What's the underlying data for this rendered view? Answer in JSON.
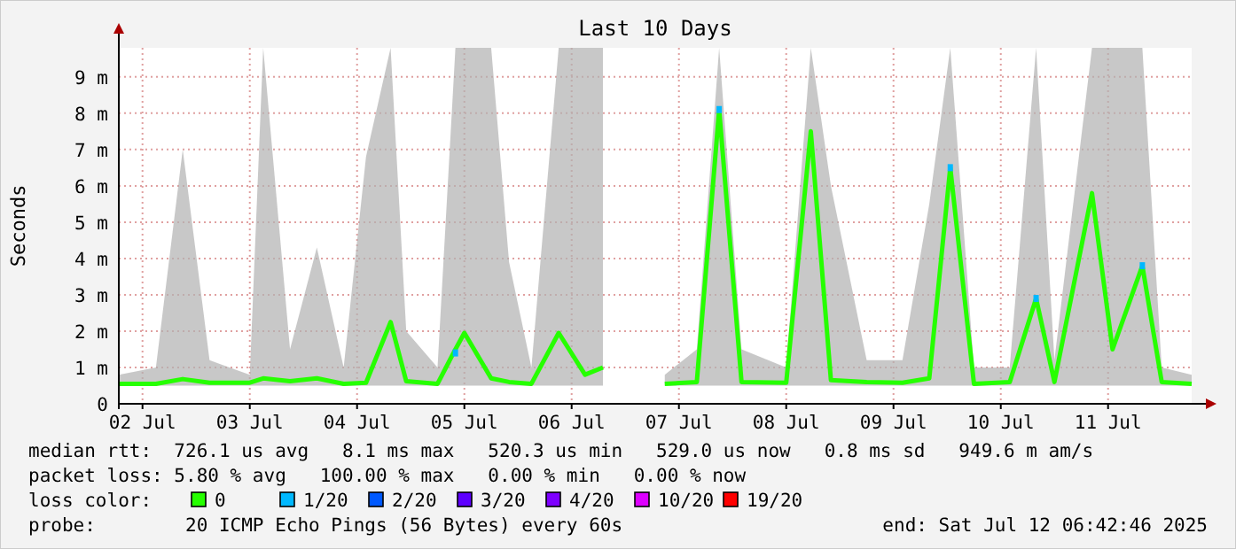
{
  "chart_data": {
    "type": "line",
    "title": "Last 10 Days",
    "ylabel": "Seconds",
    "x": [
      "2025-07-02T06:42",
      "2025-07-02T15:00",
      "2025-07-02T21:00",
      "2025-07-03T03:00",
      "2025-07-03T12:00",
      "2025-07-03T15:00",
      "2025-07-03T21:00",
      "2025-07-04T03:00",
      "2025-07-04T09:00",
      "2025-07-04T14:00",
      "2025-07-04T19:30",
      "2025-07-04T23:00",
      "2025-07-05T06:00",
      "2025-07-05T10:00",
      "2025-07-05T12:00",
      "2025-07-05T18:00",
      "2025-07-05T22:00",
      "2025-07-06T03:00",
      "2025-07-06T09:06",
      "2025-07-06T15:00",
      "2025-07-06T19:00",
      "2025-07-06T20:00",
      "2025-07-07T08:50",
      "2025-07-07T16:00",
      "2025-07-07T21:00",
      "2025-07-08T02:00",
      "2025-07-08T12:00",
      "2025-07-08T17:30",
      "2025-07-08T22:00",
      "2025-07-09T06:00",
      "2025-07-09T14:00",
      "2025-07-09T20:00",
      "2025-07-10T00:42",
      "2025-07-10T06:00",
      "2025-07-10T14:00",
      "2025-07-10T19:54",
      "2025-07-11T00:00",
      "2025-07-11T08:24",
      "2025-07-11T13:00",
      "2025-07-11T19:40",
      "2025-07-12T00:00",
      "2025-07-12T06:42"
    ],
    "series": [
      {
        "name": "0",
        "color": "#26ff00",
        "values": [
          0.55,
          0.55,
          0.68,
          0.58,
          0.58,
          0.7,
          0.62,
          0.7,
          0.55,
          0.58,
          2.25,
          0.62,
          0.55,
          1.5,
          1.95,
          0.7,
          0.6,
          0.55,
          1.95,
          0.8,
          1.0,
          null,
          0.55,
          0.6,
          8.1,
          0.6,
          0.58,
          7.5,
          0.65,
          0.6,
          0.58,
          0.7,
          6.5,
          0.55,
          0.6,
          2.9,
          0.6,
          5.8,
          1.5,
          3.8,
          0.6,
          0.55
        ],
        "lower": [
          0.5,
          0.5,
          0.5,
          0.5,
          0.5,
          0.5,
          0.5,
          0.5,
          0.5,
          0.5,
          0.5,
          0.5,
          0.5,
          0.5,
          0.5,
          0.5,
          0.5,
          0.5,
          0.5,
          0.5,
          0.5,
          null,
          0.5,
          0.5,
          0.5,
          0.5,
          0.5,
          0.5,
          0.5,
          0.5,
          0.5,
          0.5,
          0.5,
          0.5,
          0.5,
          0.5,
          0.5,
          0.5,
          0.5,
          0.5,
          0.5,
          0.5
        ],
        "upper": [
          0.8,
          1.0,
          7.0,
          1.2,
          0.8,
          9.8,
          1.5,
          4.3,
          1.0,
          6.8,
          9.8,
          2.0,
          1.0,
          9.8,
          9.8,
          9.8,
          3.9,
          1.0,
          9.8,
          9.8,
          9.8,
          null,
          0.8,
          1.5,
          9.8,
          1.5,
          1.0,
          9.8,
          6.0,
          1.2,
          1.2,
          5.5,
          9.8,
          1.0,
          1.0,
          9.8,
          1.2,
          9.8,
          9.8,
          9.8,
          1.0,
          0.8
        ]
      },
      {
        "name": "1/20",
        "type": "scatter",
        "marker": "square",
        "color": "#00b8ff",
        "x": [
          "2025-07-05T10:00",
          "2025-07-07T21:00",
          "2025-07-10T00:42",
          "2025-07-10T19:54",
          "2025-07-11T19:40"
        ],
        "values": [
          1.4,
          8.1,
          6.5,
          2.9,
          3.8
        ]
      },
      {
        "name": "2/20",
        "type": "scatter",
        "marker": "square",
        "color": "#0059ff",
        "values": [
          null,
          null,
          null,
          null,
          null,
          null,
          null,
          null,
          null,
          null,
          null,
          null,
          null,
          null,
          null,
          null,
          null,
          null,
          null,
          null,
          null,
          null,
          null,
          null,
          null,
          null,
          null,
          null,
          null,
          null,
          null,
          null,
          null,
          null,
          null,
          null,
          null,
          null,
          null,
          null,
          null,
          null
        ]
      },
      {
        "name": "3/20",
        "type": "scatter",
        "marker": "square",
        "color": "#5e00ff",
        "values": [
          null,
          null,
          null,
          null,
          null,
          null,
          null,
          null,
          null,
          null,
          null,
          null,
          null,
          null,
          null,
          null,
          null,
          null,
          null,
          null,
          null,
          null,
          null,
          null,
          null,
          null,
          null,
          null,
          null,
          null,
          null,
          null,
          null,
          null,
          null,
          null,
          null,
          null,
          null,
          null,
          null,
          null
        ]
      },
      {
        "name": "4/20",
        "type": "scatter",
        "marker": "square",
        "color": "#7e00ff",
        "values": [
          null,
          null,
          null,
          null,
          null,
          null,
          null,
          null,
          null,
          null,
          null,
          null,
          null,
          null,
          null,
          null,
          null,
          null,
          null,
          null,
          null,
          null,
          null,
          null,
          null,
          null,
          null,
          null,
          null,
          null,
          null,
          null,
          null,
          null,
          null,
          null,
          null,
          null,
          null,
          null,
          null,
          null
        ]
      },
      {
        "name": "10/20",
        "type": "scatter",
        "marker": "square",
        "color": "#dd00ff",
        "values": [
          null,
          null,
          null,
          null,
          null,
          null,
          null,
          null,
          null,
          null,
          null,
          null,
          null,
          null,
          null,
          null,
          null,
          null,
          null,
          null,
          null,
          null,
          null,
          null,
          null,
          null,
          null,
          null,
          null,
          null,
          null,
          null,
          null,
          null,
          null,
          null,
          null,
          null,
          null,
          null,
          null,
          null
        ]
      },
      {
        "name": "19/20",
        "type": "scatter",
        "marker": "square",
        "color": "#ff0000",
        "values": [
          null,
          null,
          null,
          null,
          null,
          null,
          null,
          null,
          null,
          null,
          null,
          null,
          null,
          null,
          null,
          null,
          null,
          null,
          null,
          null,
          null,
          null,
          null,
          null,
          null,
          null,
          null,
          null,
          null,
          null,
          null,
          null,
          null,
          null,
          null,
          null,
          null,
          null,
          null,
          null,
          null,
          null
        ]
      }
    ],
    "xlim": [
      "2025-07-02T06:42",
      "2025-07-12T06:42"
    ],
    "xticks": [
      {
        "value": "2025-07-02T12:00",
        "label": "02 Jul"
      },
      {
        "value": "2025-07-03T12:00",
        "label": "03 Jul"
      },
      {
        "value": "2025-07-04T12:00",
        "label": "04 Jul"
      },
      {
        "value": "2025-07-05T12:00",
        "label": "05 Jul"
      },
      {
        "value": "2025-07-06T12:00",
        "label": "06 Jul"
      },
      {
        "value": "2025-07-07T12:00",
        "label": "07 Jul"
      },
      {
        "value": "2025-07-08T12:00",
        "label": "08 Jul"
      },
      {
        "value": "2025-07-09T12:00",
        "label": "09 Jul"
      },
      {
        "value": "2025-07-10T12:00",
        "label": "10 Jul"
      },
      {
        "value": "2025-07-11T12:00",
        "label": "11 Jul"
      }
    ],
    "ylim": [
      0,
      9.8
    ],
    "yticks": [
      0,
      {
        "value": 1,
        "label": "1 m"
      },
      {
        "value": 2,
        "label": "2 m"
      },
      {
        "value": 3,
        "label": "3 m"
      },
      {
        "value": 4,
        "label": "4 m"
      },
      {
        "value": 5,
        "label": "5 m"
      },
      {
        "value": 6,
        "label": "6 m"
      },
      {
        "value": 7,
        "label": "7 m"
      },
      {
        "value": 8,
        "label": "8 m"
      },
      {
        "value": 9,
        "label": "9 m"
      }
    ],
    "grid": true,
    "legend": "bottom",
    "legend_title": "loss color:",
    "annotations": [
      "median rtt:  726.1 us avg   8.1 ms max   520.3 us min   529.0 us now   0.8 ms sd   949.6 m am/s",
      "packet loss: 5.80 % avg   100.00 % max   0.00 % min   0.00 % now",
      "probe:        20 ICMP Echo Pings (56 Bytes) every 60s",
      "end: Sat Jul 12 06:42:46 2025"
    ]
  }
}
